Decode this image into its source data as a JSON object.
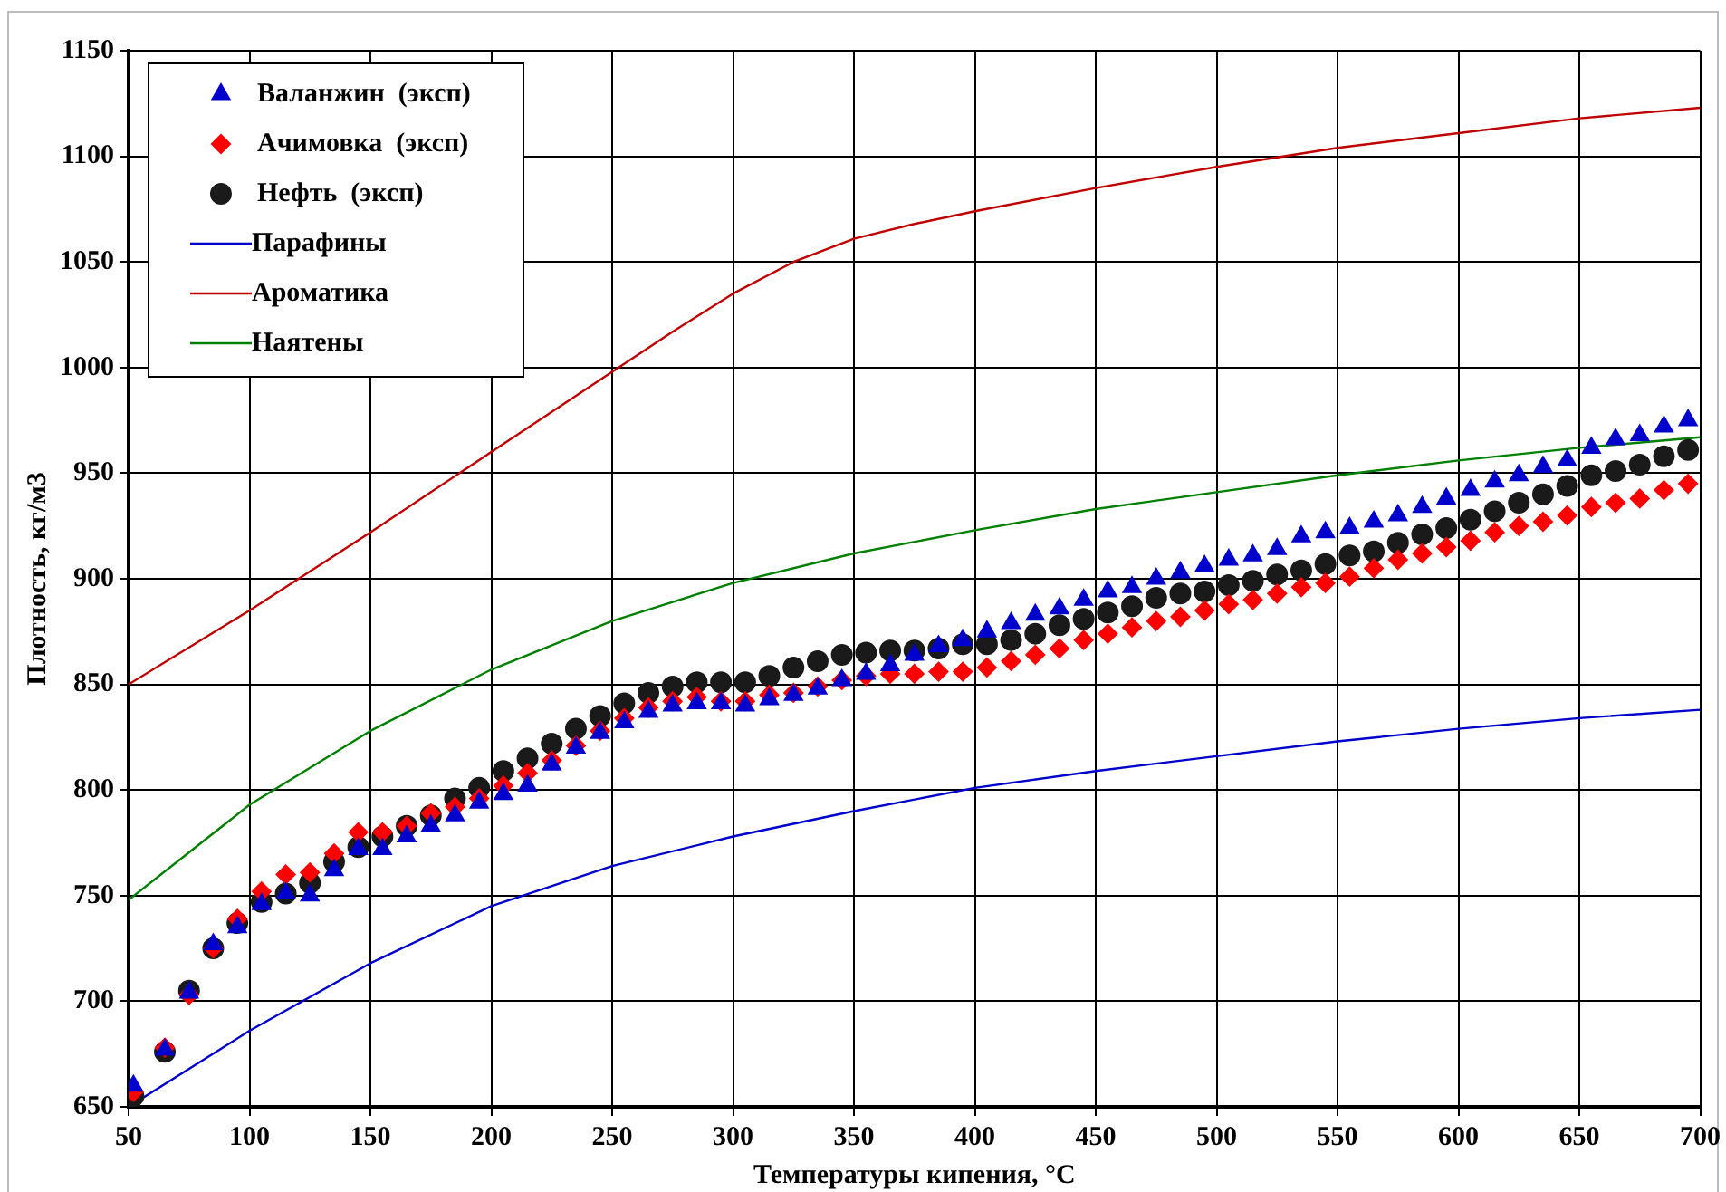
{
  "chart_data": {
    "type": "scatter",
    "xlabel": "Температуры кипения, °С",
    "ylabel": "Плотность, кг/м3",
    "x": [
      52,
      65,
      75,
      85,
      95,
      105,
      115,
      125,
      135,
      145,
      155,
      165,
      175,
      185,
      195,
      205,
      215,
      225,
      235,
      245,
      255,
      265,
      275,
      285,
      295,
      305,
      315,
      325,
      335,
      345,
      355,
      365,
      375,
      385,
      395,
      405,
      415,
      425,
      435,
      445,
      455,
      465,
      475,
      485,
      495,
      505,
      515,
      525,
      535,
      545,
      555,
      565,
      575,
      585,
      595,
      605,
      615,
      625,
      635,
      645,
      655,
      665,
      675,
      685,
      695
    ],
    "series": [
      {
        "name": "Валанжин  (эксп)",
        "color": "#0000cc",
        "marker": "triangle",
        "values": [
          660,
          677,
          704,
          727,
          735,
          746,
          751,
          750,
          762,
          772,
          772,
          778,
          783,
          788,
          794,
          798,
          802,
          812,
          820,
          827,
          832,
          837,
          840,
          841,
          841,
          840,
          843,
          845,
          848,
          852,
          855,
          859,
          864,
          868,
          871,
          875,
          879,
          883,
          886,
          890,
          894,
          896,
          900,
          903,
          906,
          909,
          911,
          914,
          920,
          922,
          924,
          927,
          930,
          934,
          938,
          942,
          946,
          949,
          953,
          956,
          962,
          966,
          968,
          972,
          975
        ]
      },
      {
        "name": "Ачимовка  (эксп)",
        "color": "#ff0000",
        "marker": "diamond",
        "values": [
          657,
          678,
          703,
          725,
          739,
          752,
          760,
          761,
          770,
          780,
          780,
          783,
          789,
          792,
          796,
          802,
          808,
          814,
          821,
          828,
          834,
          839,
          842,
          844,
          842,
          842,
          845,
          846,
          849,
          852,
          854,
          855,
          855,
          856,
          856,
          858,
          861,
          864,
          867,
          871,
          874,
          877,
          880,
          882,
          885,
          888,
          890,
          893,
          896,
          898,
          901,
          905,
          909,
          912,
          915,
          918,
          922,
          925,
          927,
          930,
          934,
          936,
          938,
          942,
          945
        ]
      },
      {
        "name": "Нефть  (эксп)",
        "color": "#1a1a1a",
        "marker": "circle",
        "values": [
          655,
          676,
          705,
          725,
          737,
          747,
          751,
          756,
          766,
          773,
          778,
          783,
          788,
          796,
          801,
          809,
          815,
          822,
          829,
          835,
          841,
          846,
          849,
          851,
          851,
          851,
          854,
          858,
          861,
          864,
          865,
          866,
          866,
          867,
          869,
          869,
          871,
          874,
          878,
          881,
          884,
          887,
          891,
          893,
          894,
          897,
          899,
          902,
          904,
          907,
          911,
          913,
          917,
          921,
          924,
          928,
          932,
          936,
          940,
          944,
          949,
          951,
          954,
          958,
          961
        ]
      },
      {
        "name": "Парафины",
        "type": "line",
        "color": "#0000cc",
        "marker": "none",
        "x": [
          50,
          100,
          150,
          200,
          250,
          300,
          350,
          400,
          450,
          500,
          550,
          600,
          650,
          700
        ],
        "values": [
          650,
          686,
          718,
          745,
          764,
          778,
          790,
          801,
          809,
          816,
          823,
          829,
          834,
          838
        ]
      },
      {
        "name": "Ароматика",
        "type": "line",
        "color": "#c00000",
        "marker": "none",
        "x": [
          50,
          100,
          150,
          200,
          250,
          275,
          300,
          325,
          350,
          375,
          400,
          450,
          500,
          550,
          600,
          650,
          700
        ],
        "values": [
          850,
          885,
          922,
          960,
          998,
          1017,
          1035,
          1050,
          1061,
          1068,
          1074,
          1085,
          1095,
          1104,
          1111,
          1118,
          1123
        ]
      },
      {
        "name": "Наятены",
        "type": "line",
        "color": "#008000",
        "marker": "none",
        "x": [
          50,
          100,
          150,
          200,
          250,
          300,
          350,
          400,
          450,
          500,
          550,
          600,
          650,
          700
        ],
        "values": [
          748,
          793,
          828,
          857,
          880,
          898,
          912,
          923,
          933,
          941,
          949,
          956,
          962,
          967
        ]
      }
    ],
    "xlim": [
      50,
      700
    ],
    "xticks": [
      50,
      100,
      150,
      200,
      250,
      300,
      350,
      400,
      450,
      500,
      550,
      600,
      650,
      700
    ],
    "ylim": [
      650,
      1150
    ],
    "yticks": [
      650,
      700,
      750,
      800,
      850,
      900,
      950,
      1000,
      1050,
      1100,
      1150
    ],
    "grid": true,
    "legend": "top left",
    "line_style": "solid"
  }
}
